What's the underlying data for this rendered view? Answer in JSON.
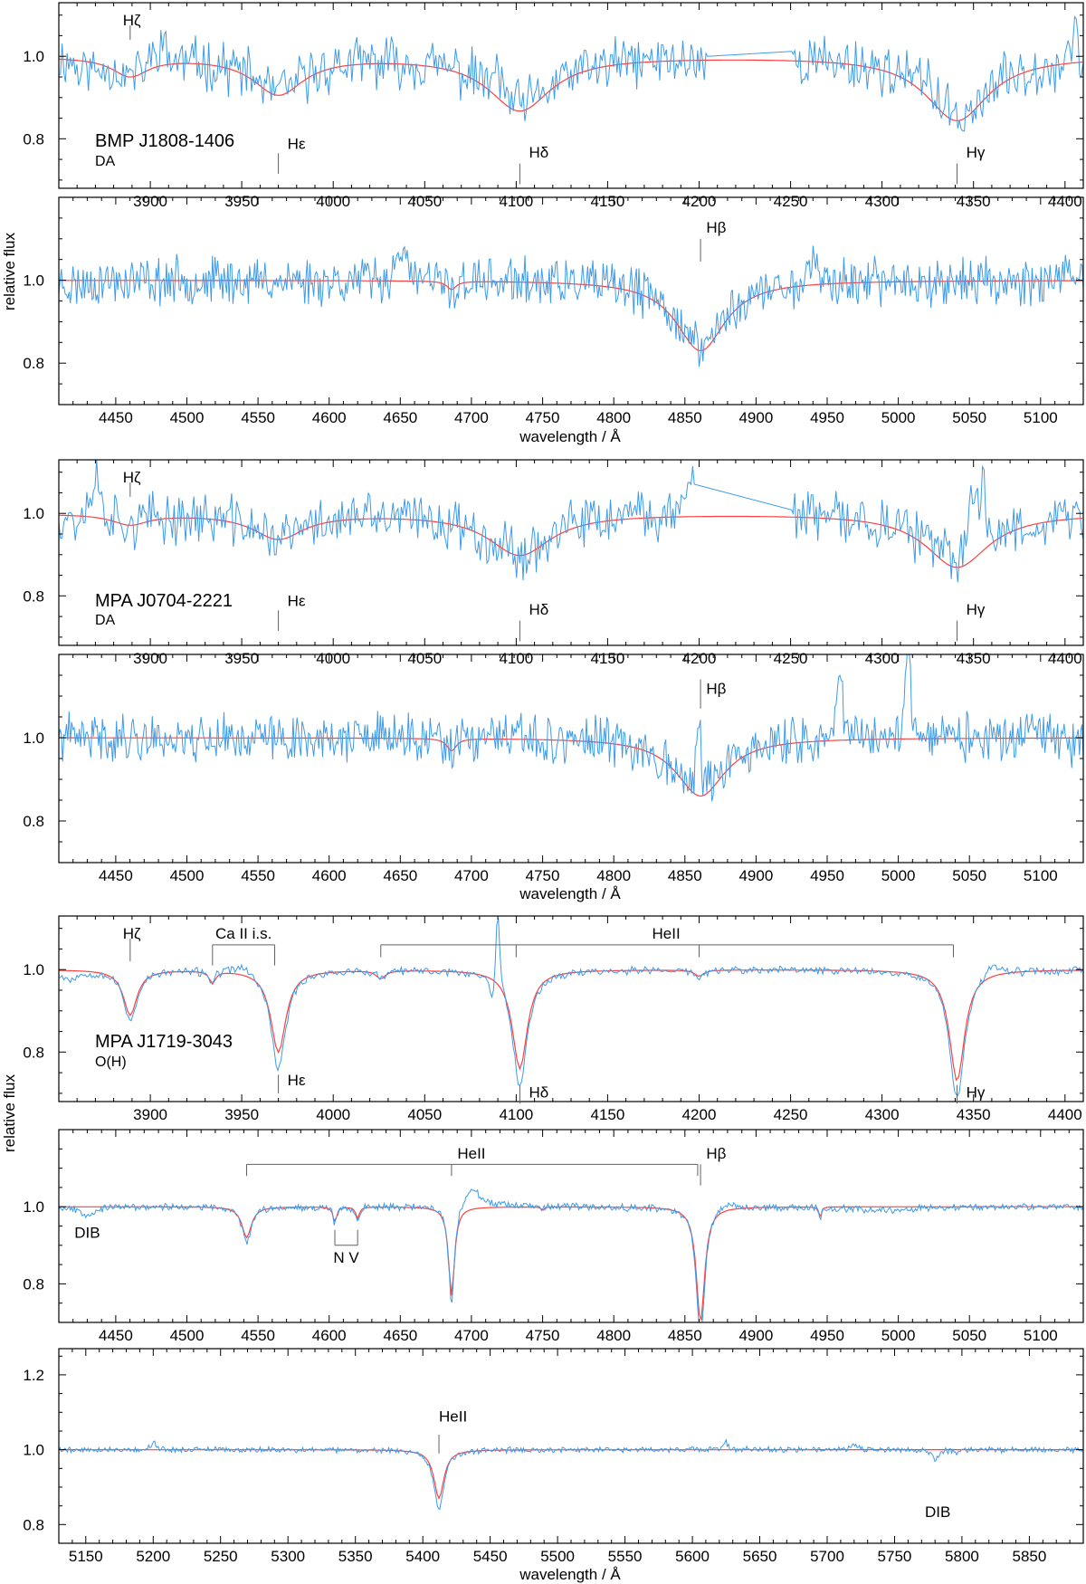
{
  "figure": {
    "axis_labels": {
      "y_top": "relative flux",
      "y_bottom": "relative flux",
      "x_top": "wavelength / Å",
      "x_middle": "wavelength / Å",
      "x_bottom": "wavelength / Å"
    },
    "legend": {
      "observed_color": "#3d9be9",
      "model_color": "#ff4040",
      "marker_color": "#606060"
    }
  },
  "chart_data": [
    {
      "type": "line",
      "star": "BMP J1808-1406",
      "spectral_type": "DA",
      "xlim": [
        3850,
        4410
      ],
      "ylim": [
        0.68,
        1.13
      ],
      "xticks": [
        3900,
        3950,
        4000,
        4050,
        4100,
        4150,
        4200,
        4250,
        4300,
        4350,
        4400
      ],
      "yticks": [
        0.8,
        1.0
      ],
      "lines": [
        {
          "type": "marker",
          "label": "Hζ",
          "x": 3889,
          "yfrom": 1.075,
          "yto": 1.04,
          "lx": 3885,
          "ly": 1.075
        },
        {
          "type": "marker",
          "label": "Hε",
          "x": 3970,
          "yfrom": 0.765,
          "yto": 0.715,
          "lx": 3975,
          "ly": 0.775
        },
        {
          "type": "marker",
          "label": "Hδ",
          "x": 4102,
          "yfrom": 0.74,
          "yto": 0.69,
          "lx": 4107,
          "ly": 0.755
        },
        {
          "type": "marker",
          "label": "Hγ",
          "x": 4341,
          "yfrom": 0.74,
          "yto": 0.69,
          "lx": 4346,
          "ly": 0.755
        }
      ],
      "series": [
        {
          "role": "model",
          "kind": "synthetic",
          "continuum": 1.0,
          "lines": [
            [
              3889,
              0.045,
              12
            ],
            [
              3970,
              0.09,
              17
            ],
            [
              4102,
              0.13,
              21
            ],
            [
              4341,
              0.155,
              21
            ]
          ]
        },
        {
          "role": "observed",
          "kind": "synthetic",
          "continuum": 1.0,
          "noise": 0.05,
          "seed": 11,
          "gap": [
            4205,
            4250
          ],
          "emissions": [
            [
              3905,
              0.06,
              3
            ],
            [
              4090,
              0.05,
              3
            ],
            [
              4325,
              0.06,
              2
            ],
            [
              4405,
              0.07,
              2
            ]
          ],
          "absorptions": [
            [
              3862,
              0.12,
              2
            ],
            [
              3870,
              0.1,
              2
            ]
          ]
        }
      ]
    },
    {
      "type": "line",
      "star": "BMP J1808-1406",
      "spectral_type": "",
      "xlim": [
        4410,
        5130
      ],
      "ylim": [
        0.7,
        1.2
      ],
      "xticks": [
        4450,
        4500,
        4550,
        4600,
        4650,
        4700,
        4750,
        4800,
        4850,
        4900,
        4950,
        5000,
        5050,
        5100
      ],
      "yticks": [
        0.8,
        1.0
      ],
      "lines": [
        {
          "type": "marker",
          "label": "Hβ",
          "x": 4861,
          "yfrom": 1.1,
          "yto": 1.045,
          "lx": 4865,
          "ly": 1.115
        }
      ],
      "series": [
        {
          "role": "model",
          "kind": "synthetic",
          "continuum": 1.0,
          "lines": [
            [
              4686,
              0.02,
              4
            ],
            [
              4861,
              0.17,
              21
            ]
          ]
        },
        {
          "role": "observed",
          "kind": "synthetic",
          "continuum": 1.0,
          "noise": 0.045,
          "seed": 23,
          "emissions": [
            [
              4650,
              0.09,
              3
            ],
            [
              4940,
              0.1,
              2
            ]
          ],
          "absorptions": [
            [
              4420,
              0.05,
              8
            ],
            [
              4686,
              0.03,
              3
            ]
          ]
        }
      ]
    },
    {
      "type": "line",
      "star": "MPA J0704-2221",
      "spectral_type": "DA",
      "xlim": [
        3850,
        4410
      ],
      "ylim": [
        0.68,
        1.13
      ],
      "xticks": [
        3900,
        3950,
        4000,
        4050,
        4100,
        4150,
        4200,
        4250,
        4300,
        4350,
        4400
      ],
      "yticks": [
        0.8,
        1.0
      ],
      "lines": [
        {
          "type": "marker",
          "label": "Hζ",
          "x": 3889,
          "yfrom": 1.075,
          "yto": 1.04,
          "lx": 3885,
          "ly": 1.075
        },
        {
          "type": "marker",
          "label": "Hε",
          "x": 3970,
          "yfrom": 0.765,
          "yto": 0.715,
          "lx": 3975,
          "ly": 0.775
        },
        {
          "type": "marker",
          "label": "Hδ",
          "x": 4102,
          "yfrom": 0.74,
          "yto": 0.69,
          "lx": 4107,
          "ly": 0.755
        },
        {
          "type": "marker",
          "label": "Hγ",
          "x": 4341,
          "yfrom": 0.74,
          "yto": 0.69,
          "lx": 4346,
          "ly": 0.755
        }
      ],
      "series": [
        {
          "role": "model",
          "kind": "synthetic",
          "continuum": 1.0,
          "lines": [
            [
              3889,
              0.025,
              12
            ],
            [
              3970,
              0.06,
              17
            ],
            [
              4102,
              0.1,
              21
            ],
            [
              4341,
              0.13,
              21
            ]
          ]
        },
        {
          "role": "observed",
          "kind": "synthetic",
          "continuum": 1.0,
          "noise": 0.05,
          "seed": 37,
          "gap": [
            4198,
            4250
          ],
          "emissions": [
            [
              3870,
              0.1,
              3
            ],
            [
              4195,
              0.12,
              3
            ],
            [
              4350,
              0.14,
              3
            ],
            [
              4355,
              0.12,
              2
            ]
          ],
          "absorptions": [
            [
              3860,
              0.1,
              2
            ]
          ]
        }
      ]
    },
    {
      "type": "line",
      "star": "MPA J0704-2221",
      "spectral_type": "",
      "xlim": [
        4410,
        5130
      ],
      "ylim": [
        0.7,
        1.2
      ],
      "xticks": [
        4450,
        4500,
        4550,
        4600,
        4650,
        4700,
        4750,
        4800,
        4850,
        4900,
        4950,
        5000,
        5050,
        5100
      ],
      "yticks": [
        0.8,
        1.0
      ],
      "lines": [
        {
          "type": "marker",
          "label": "Hβ",
          "x": 4861,
          "yfrom": 1.14,
          "yto": 1.07,
          "lx": 4865,
          "ly": 1.105
        }
      ],
      "series": [
        {
          "role": "model",
          "kind": "synthetic",
          "continuum": 1.0,
          "lines": [
            [
              4686,
              0.03,
              4
            ],
            [
              4861,
              0.14,
              21
            ]
          ]
        },
        {
          "role": "observed",
          "kind": "synthetic",
          "continuum": 1.0,
          "noise": 0.045,
          "seed": 41,
          "emissions": [
            [
              4860,
              0.18,
              1.5
            ],
            [
              4959,
              0.2,
              2
            ],
            [
              5007,
              0.25,
              2
            ]
          ],
          "absorptions": [
            [
              4686,
              0.06,
              3
            ],
            [
              5125,
              0.07,
              4
            ]
          ]
        }
      ]
    },
    {
      "type": "line",
      "star": "MPA J1719-3043",
      "spectral_type": "O(H)",
      "xlim": [
        3850,
        4410
      ],
      "ylim": [
        0.68,
        1.13
      ],
      "xticks": [
        3900,
        3950,
        4000,
        4050,
        4100,
        4150,
        4200,
        4250,
        4300,
        4350,
        4400
      ],
      "yticks": [
        0.8,
        1.0
      ],
      "lines": [
        {
          "type": "marker",
          "label": "Hζ",
          "x": 3889,
          "yfrom": 1.075,
          "yto": 1.02,
          "lx": 3885,
          "ly": 1.075
        },
        {
          "type": "bracket",
          "label": "Ca II i.s.",
          "x1": 3934,
          "x2": 3968,
          "y": 1.06,
          "yto": 1.01,
          "lx": 3951,
          "ly": 1.075
        },
        {
          "type": "bracket",
          "label": "HeII",
          "xs": [
            4026,
            4100,
            4200,
            4339
          ],
          "y": 1.06,
          "yto": 1.03,
          "lx": 4182,
          "ly": 1.075
        },
        {
          "type": "marker",
          "label": "Hε",
          "x": 3970,
          "yfrom": 0.745,
          "yto": 0.7,
          "lx": 3975,
          "ly": 0.72
        },
        {
          "type": "marker",
          "label": "Hδ",
          "x": 4102,
          "yfrom": 0.72,
          "yto": 0.675,
          "lx": 4107,
          "ly": 0.69
        },
        {
          "type": "marker",
          "label": "Hγ",
          "x": 4341,
          "yfrom": 0.72,
          "yto": 0.675,
          "lx": 4346,
          "ly": 0.69
        }
      ],
      "series": [
        {
          "role": "model",
          "kind": "synthetic",
          "continuum": 1.0,
          "lines": [
            [
              3889,
              0.11,
              4.5
            ],
            [
              3934,
              0.03,
              2
            ],
            [
              3970,
              0.2,
              5
            ],
            [
              4026,
              0.02,
              3
            ],
            [
              4102,
              0.24,
              5
            ],
            [
              4200,
              0.015,
              3
            ],
            [
              4341,
              0.27,
              5
            ]
          ]
        },
        {
          "role": "observed",
          "kind": "synthetic",
          "continuum": 1.0,
          "noise": 0.008,
          "seed": 53,
          "emissions": [
            [
              4090,
              0.2,
              1.2
            ],
            [
              4360,
              0.03,
              4
            ],
            [
              3950,
              0.02,
              6
            ]
          ],
          "absorptions": [
            [
              3856,
              0.08,
              6
            ],
            [
              3889,
              0.08,
              4.5
            ],
            [
              3970,
              0.22,
              5
            ],
            [
              4087,
              0.25,
              1.5
            ],
            [
              4102,
              0.24,
              5
            ],
            [
              4200,
              0.02,
              3
            ],
            [
              4341,
              0.26,
              5
            ]
          ]
        }
      ]
    },
    {
      "type": "line",
      "star": "MPA J1719-3043",
      "spectral_type": "",
      "xlim": [
        4410,
        5130
      ],
      "ylim": [
        0.7,
        1.2
      ],
      "xticks": [
        4450,
        4500,
        4550,
        4600,
        4650,
        4700,
        4750,
        4800,
        4850,
        4900,
        4950,
        5000,
        5050,
        5100
      ],
      "yticks": [
        0.8,
        1.0
      ],
      "lines": [
        {
          "type": "bracket",
          "label": "HeII",
          "xs": [
            4542,
            4686,
            4859
          ],
          "y": 1.11,
          "yto": 1.08,
          "lx": 4700,
          "ly": 1.125
        },
        {
          "type": "marker",
          "label": "Hβ",
          "x": 4861,
          "yfrom": 1.11,
          "yto": 1.055,
          "lx": 4865,
          "ly": 1.125
        },
        {
          "type": "bracket_down",
          "label": "N V",
          "x1": 4604,
          "x2": 4620,
          "y": 0.9,
          "yto": 0.94,
          "lx": 4612,
          "ly": 0.855
        },
        {
          "type": "text",
          "label": "DIB",
          "x": 4430,
          "y": 0.92
        }
      ],
      "series": [
        {
          "role": "model",
          "kind": "synthetic",
          "continuum": 1.0,
          "lines": [
            [
              4542,
              0.08,
              4
            ],
            [
              4604,
              0.04,
              1.5
            ],
            [
              4620,
              0.03,
              1.5
            ],
            [
              4686,
              0.23,
              2.5
            ],
            [
              4750,
              0.01,
              1
            ],
            [
              4861,
              0.3,
              3.5
            ],
            [
              4945,
              0.03,
              1
            ]
          ]
        },
        {
          "role": "observed",
          "kind": "synthetic",
          "continuum": 1.0,
          "noise": 0.007,
          "seed": 67,
          "emissions": [
            [
              4700,
              0.05,
              8
            ],
            [
              4880,
              0.02,
              6
            ]
          ],
          "absorptions": [
            [
              4430,
              0.08,
              6
            ],
            [
              4542,
              0.06,
              4
            ],
            [
              4604,
              0.03,
              1.5
            ],
            [
              4620,
              0.03,
              1.5
            ],
            [
              4686,
              0.2,
              2.5
            ],
            [
              4861,
              0.26,
              3.5
            ],
            [
              4990,
              0.03,
              30
            ]
          ]
        }
      ]
    },
    {
      "type": "line",
      "star": "MPA J1719-3043",
      "spectral_type": "",
      "xlim": [
        5130,
        5890
      ],
      "ylim": [
        0.75,
        1.27
      ],
      "xticks": [
        5150,
        5200,
        5250,
        5300,
        5350,
        5400,
        5450,
        5500,
        5550,
        5600,
        5650,
        5700,
        5750,
        5800,
        5850
      ],
      "yticks": [
        0.8,
        1.0,
        1.2
      ],
      "lines": [
        {
          "type": "marker",
          "label": "HeII",
          "x": 5412,
          "yfrom": 1.04,
          "yto": 0.99,
          "lx": 5412,
          "ly": 1.075
        },
        {
          "type": "text",
          "label": "DIB",
          "x": 5782,
          "y": 0.82
        }
      ],
      "series": [
        {
          "role": "model",
          "kind": "synthetic",
          "continuum": 1.0,
          "lines": [
            [
              5412,
              0.13,
              4.5
            ]
          ]
        },
        {
          "role": "observed",
          "kind": "synthetic",
          "continuum": 1.0,
          "noise": 0.006,
          "seed": 79,
          "emissions": [
            [
              5200,
              0.02,
              2
            ],
            [
              5625,
              0.02,
              2
            ],
            [
              5720,
              0.015,
              2
            ]
          ],
          "absorptions": [
            [
              5412,
              0.16,
              4.5
            ],
            [
              5780,
              0.11,
              3
            ],
            [
              5797,
              0.03,
              2
            ]
          ]
        }
      ]
    }
  ]
}
